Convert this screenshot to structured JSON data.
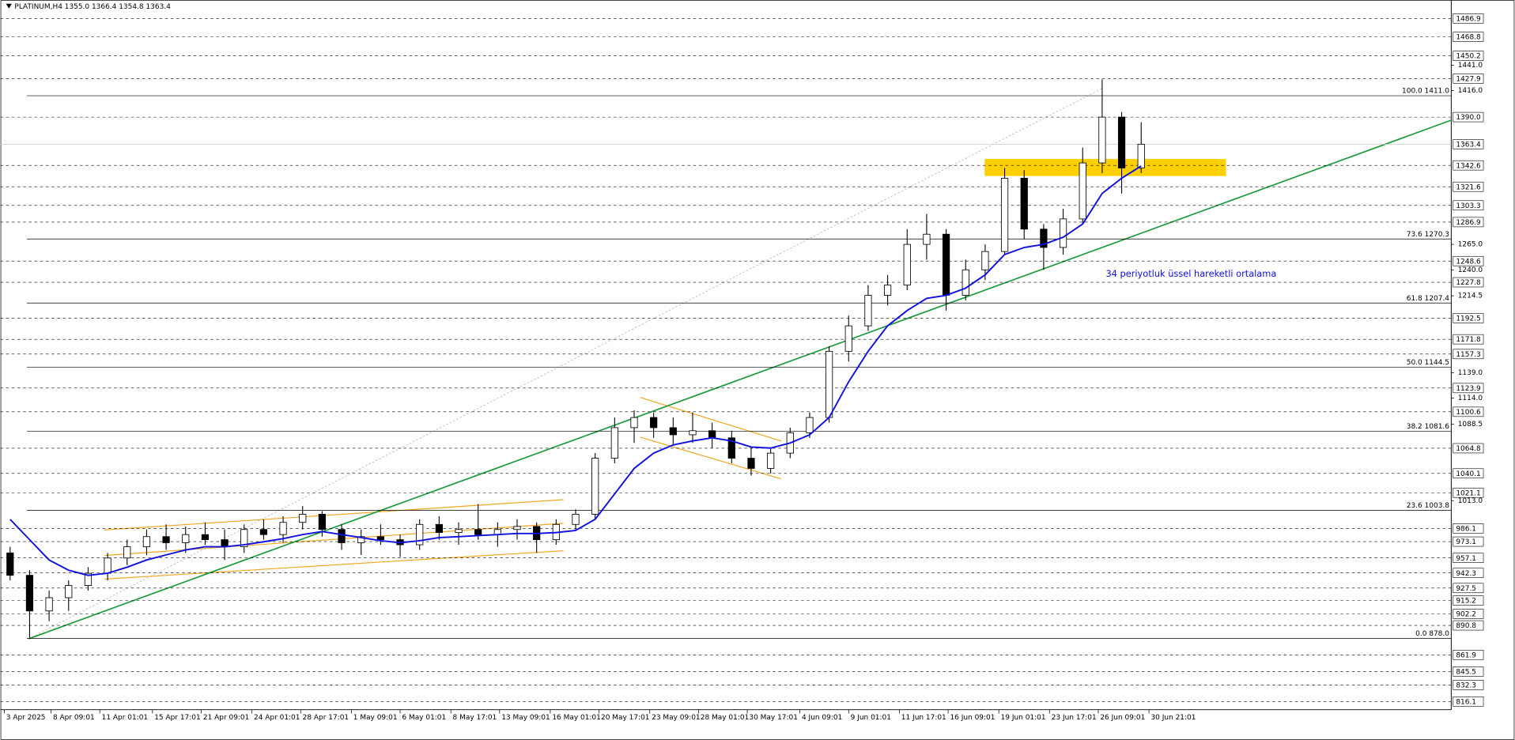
{
  "chart_data": {
    "type": "candlestick",
    "header": "PLATINUM,H4  1355.0 1366.4 1354.8 1363.4",
    "ylim": [
      808,
      1505
    ],
    "xlim": [
      -0.5,
      73.9
    ],
    "open": [
      962,
      940,
      905,
      918,
      930,
      942,
      957,
      968,
      978,
      972,
      980,
      975,
      968,
      985,
      980,
      992,
      1000,
      985,
      972,
      978,
      975,
      970,
      990,
      982,
      985,
      980,
      985,
      988,
      975,
      990,
      1000,
      1055,
      1085,
      1095,
      1085,
      1078,
      1082,
      1075,
      1055,
      1045,
      1060,
      1080,
      1095,
      1160,
      1185,
      1215,
      1225,
      1265,
      1275,
      1215,
      1240,
      1258,
      1330,
      1280,
      1262,
      1290,
      1345,
      1390,
      1340
    ],
    "high": [
      968,
      945,
      925,
      935,
      948,
      962,
      975,
      985,
      990,
      988,
      992,
      985,
      990,
      995,
      998,
      1008,
      1003,
      990,
      985,
      990,
      980,
      995,
      998,
      992,
      1010,
      992,
      995,
      992,
      995,
      1005,
      1060,
      1095,
      1102,
      1100,
      1095,
      1100,
      1090,
      1082,
      1065,
      1065,
      1085,
      1100,
      1165,
      1195,
      1225,
      1235,
      1280,
      1295,
      1280,
      1250,
      1265,
      1340,
      1338,
      1285,
      1300,
      1360,
      1427,
      1395,
      1385
    ],
    "low": [
      935,
      878,
      895,
      905,
      925,
      935,
      950,
      960,
      965,
      962,
      970,
      955,
      962,
      975,
      972,
      985,
      978,
      965,
      960,
      970,
      958,
      965,
      975,
      970,
      975,
      968,
      975,
      962,
      970,
      985,
      995,
      1050,
      1070,
      1075,
      1068,
      1070,
      1065,
      1050,
      1038,
      1040,
      1055,
      1075,
      1090,
      1150,
      1180,
      1205,
      1220,
      1250,
      1200,
      1210,
      1230,
      1255,
      1270,
      1240,
      1255,
      1285,
      1335,
      1315,
      1335
    ],
    "close": [
      940,
      905,
      918,
      930,
      942,
      957,
      968,
      978,
      972,
      980,
      975,
      968,
      985,
      980,
      992,
      1000,
      985,
      972,
      978,
      975,
      970,
      990,
      982,
      985,
      980,
      985,
      988,
      975,
      990,
      1000,
      1055,
      1085,
      1095,
      1085,
      1078,
      1082,
      1075,
      1055,
      1045,
      1060,
      1080,
      1095,
      1160,
      1185,
      1215,
      1225,
      1265,
      1275,
      1215,
      1240,
      1258,
      1330,
      1280,
      1262,
      1290,
      1345,
      1390,
      1340,
      1363.4
    ],
    "series": [
      {
        "name": "34 periyotluk üssel hareketli ortalama",
        "color": "#1010e0",
        "values": [
          995,
          975,
          955,
          945,
          940,
          942,
          948,
          955,
          960,
          965,
          968,
          968,
          970,
          973,
          976,
          980,
          983,
          980,
          977,
          974,
          972,
          974,
          977,
          978,
          979,
          980,
          981,
          981,
          982,
          984,
          995,
          1020,
          1045,
          1060,
          1068,
          1072,
          1075,
          1072,
          1066,
          1065,
          1070,
          1078,
          1095,
          1130,
          1160,
          1185,
          1200,
          1212,
          1215,
          1222,
          1235,
          1255,
          1262,
          1265,
          1272,
          1285,
          1315,
          1330,
          1342
        ]
      }
    ],
    "levels": [
      1486.9,
      1468.8,
      1450.2,
      1427.9,
      {
        "value": 1390,
        "label": "1390.0"
      },
      1342.6,
      1321.6,
      1303.3,
      1286.9,
      1248.6,
      1227.8,
      1192.5,
      1171.8,
      1157.3,
      1123.9,
      1100.6,
      1064.8,
      1040.1,
      1021.1,
      986.1,
      973.1,
      957.1,
      942.3,
      927.5,
      915.2,
      902.2,
      890.8,
      861.9,
      845.5,
      832.3,
      816.1
    ],
    "yticks": [
      {
        "value": 1441,
        "label": "1441.0"
      },
      {
        "value": 1416,
        "label": "1416.0"
      },
      {
        "value": 1265,
        "label": "1265.0"
      },
      {
        "value": 1240,
        "label": "1240.0"
      },
      1214.5,
      {
        "value": 1139,
        "label": "1139.0"
      },
      {
        "value": 1114,
        "label": "1114.0"
      },
      1088.5,
      {
        "value": 1013,
        "label": "1013.0"
      }
    ],
    "last_price": 1363.4,
    "fib_levels": [
      {
        "value": 1411,
        "label": "100.0 1411.0"
      },
      {
        "value": 1270.3,
        "label": "73.6 1270.3"
      },
      {
        "value": 1207.4,
        "label": "61.8 1207.4"
      },
      {
        "value": 1144.5,
        "label": "50.0 1144.5"
      },
      {
        "value": 1081.6,
        "label": "38.2 1081.6"
      },
      {
        "value": 1003.8,
        "label": "23.6 1003.8"
      },
      {
        "value": 878,
        "label": "0.0 878.0"
      }
    ],
    "xticks": [
      {
        "value": -0.3,
        "label": "3 Apr 2025"
      },
      {
        "value": 2.1,
        "label": "8 Apr 09:01"
      },
      {
        "value": 4.6,
        "label": "11 Apr 01:01"
      },
      {
        "value": 7.3,
        "label": "15 Apr 17:01"
      },
      {
        "value": 9.8,
        "label": "21 Apr 09:01"
      },
      {
        "value": 12.4,
        "label": "24 Apr 01:01"
      },
      {
        "value": 14.9,
        "label": "28 Apr 17:01"
      },
      {
        "value": 17.5,
        "label": "1 May 09:01"
      },
      {
        "value": 20,
        "label": "6 May 01:01"
      },
      {
        "value": 22.6,
        "label": "8 May 17:01"
      },
      {
        "value": 25.1,
        "label": "13 May 09:01"
      },
      {
        "value": 27.7,
        "label": "16 May 01:01"
      },
      {
        "value": 30.2,
        "label": "20 May 17:01"
      },
      {
        "value": 32.8,
        "label": "23 May 09:01"
      },
      {
        "value": 35.3,
        "label": "28 May 01:01"
      },
      {
        "value": 37.8,
        "label": "30 May 17:01"
      },
      {
        "value": 40.5,
        "label": "4 Jun 09:01"
      },
      {
        "value": 43,
        "label": "9 Jun 01:01"
      },
      {
        "value": 45.6,
        "label": "11 Jun 17:01"
      },
      {
        "value": 48.1,
        "label": "16 Jun 09:01"
      },
      {
        "value": 50.7,
        "label": "19 Jun 01:01"
      },
      {
        "value": 53.3,
        "label": "23 Jun 17:01"
      },
      {
        "value": 55.8,
        "label": "26 Jun 09:01"
      },
      {
        "value": 58.4,
        "label": "30 Jun 21:01"
      }
    ]
  }
}
